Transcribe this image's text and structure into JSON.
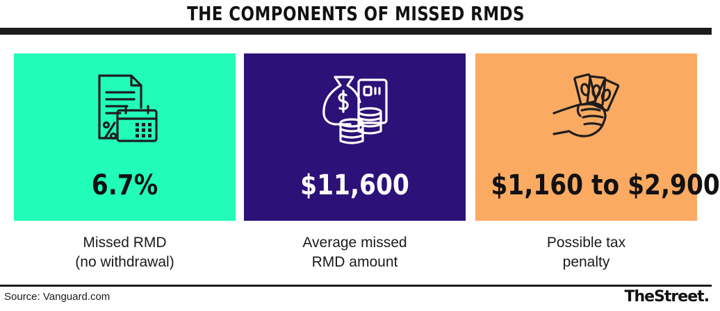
{
  "title": "THE COMPONENTS OF MISSED RMDS",
  "colors": {
    "card_1": "#21fdb9",
    "card_2": "#2c1178",
    "card_3": "#fbaa62",
    "rule": "#1c1c1c"
  },
  "cards": [
    {
      "icon": "document-calendar-percent-icon",
      "value": "6.7%",
      "caption": [
        "Missed RMD",
        "(no withdrawal)"
      ]
    },
    {
      "icon": "money-bag-coins-card-icon",
      "value": "$11,600",
      "caption": [
        "Average missed",
        "RMD amount"
      ]
    },
    {
      "icon": "hand-holding-cash-icon",
      "value": "$1,160 to $2,900",
      "caption": [
        "Possible tax",
        "penalty"
      ]
    }
  ],
  "footer": {
    "source": "Source: Vanguard.com",
    "brand": "TheStreet"
  }
}
